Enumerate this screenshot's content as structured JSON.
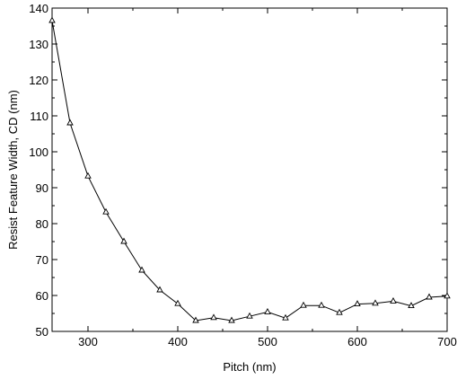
{
  "chart_data": {
    "type": "line",
    "xlabel": "Pitch (nm)",
    "ylabel": "Resist Feature Width, CD (nm)",
    "xlim": [
      260,
      700
    ],
    "ylim": [
      50,
      140
    ],
    "x_ticks": [
      300,
      400,
      500,
      600,
      700
    ],
    "y_ticks": [
      50,
      60,
      70,
      80,
      90,
      100,
      110,
      120,
      130,
      140
    ],
    "grid": false,
    "marker": "triangle",
    "series": [
      {
        "x": [
          260,
          280,
          300,
          320,
          340,
          360,
          380,
          400,
          420,
          440,
          460,
          480,
          500,
          520,
          540,
          560,
          580,
          600,
          620,
          640,
          660,
          680,
          700
        ],
        "y": [
          136.5,
          108,
          93.2,
          83.2,
          75,
          67,
          61.5,
          57.7,
          53,
          53.8,
          53,
          54.2,
          55.4,
          53.7,
          57.2,
          57.2,
          55.2,
          57.6,
          57.8,
          58.4,
          57.1,
          59.5,
          59.8
        ]
      }
    ],
    "colors": {
      "line": "#000000",
      "axis": "#000000",
      "background": "#ffffff"
    }
  }
}
